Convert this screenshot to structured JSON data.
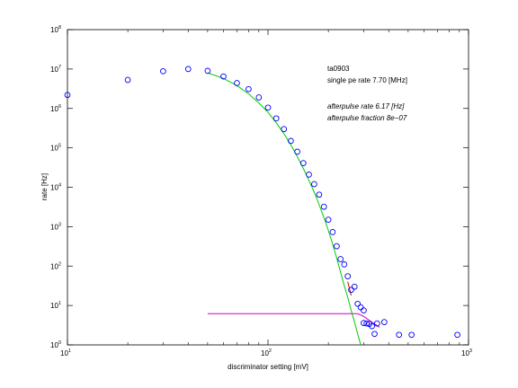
{
  "chart_data": {
    "type": "scatter",
    "title": "",
    "xlabel": "discriminator setting [mV]",
    "ylabel": "rate [Hz]",
    "xscale": "log",
    "yscale": "log",
    "xlim": [
      10,
      1000
    ],
    "ylim": [
      1,
      100000000
    ],
    "x_ticks": [
      {
        "base": "10",
        "exp": "1",
        "value": 10
      },
      {
        "base": "10",
        "exp": "2",
        "value": 100
      },
      {
        "base": "10",
        "exp": "3",
        "value": 1000
      }
    ],
    "y_ticks": [
      {
        "base": "10",
        "exp": "0",
        "value": 1
      },
      {
        "base": "10",
        "exp": "1",
        "value": 10
      },
      {
        "base": "10",
        "exp": "2",
        "value": 100
      },
      {
        "base": "10",
        "exp": "3",
        "value": 1000
      },
      {
        "base": "10",
        "exp": "4",
        "value": 10000
      },
      {
        "base": "10",
        "exp": "5",
        "value": 100000
      },
      {
        "base": "10",
        "exp": "6",
        "value": 1000000
      },
      {
        "base": "10",
        "exp": "7",
        "value": 10000000
      },
      {
        "base": "10",
        "exp": "8",
        "value": 100000000
      }
    ],
    "annotations": [
      {
        "text": "ta0903",
        "italic": false
      },
      {
        "text": "single pe rate 7.70 [MHz]",
        "italic": false
      },
      {
        "text": "afterpulse rate 6.17 [Hz]",
        "italic": true
      },
      {
        "text": "afterpulse fraction 8e−07",
        "italic": true
      }
    ],
    "series": [
      {
        "type": "scatter",
        "color": "#0000ff",
        "points": [
          [
            10,
            2200000
          ],
          [
            20,
            5300000
          ],
          [
            30,
            8800000
          ],
          [
            40,
            10000000
          ],
          [
            50,
            9000000
          ],
          [
            60,
            6500000
          ],
          [
            70,
            4400000
          ],
          [
            80,
            3100000
          ],
          [
            90,
            1900000
          ],
          [
            100,
            1050000
          ],
          [
            110,
            560000
          ],
          [
            120,
            300000
          ],
          [
            130,
            150000
          ],
          [
            140,
            80000
          ],
          [
            150,
            41000
          ],
          [
            160,
            21000
          ],
          [
            170,
            12000
          ],
          [
            180,
            6500
          ],
          [
            190,
            3200
          ],
          [
            200,
            1500
          ],
          [
            210,
            730
          ],
          [
            220,
            320
          ],
          [
            230,
            150
          ],
          [
            240,
            110
          ],
          [
            250,
            55
          ],
          [
            260,
            25
          ],
          [
            270,
            30
          ],
          [
            280,
            11
          ],
          [
            290,
            9
          ],
          [
            300,
            7.5
          ],
          [
            300,
            3.6
          ],
          [
            310,
            3.5
          ],
          [
            320,
            3.4
          ],
          [
            330,
            3.0
          ],
          [
            340,
            1.9
          ],
          [
            350,
            3.5
          ],
          [
            380,
            3.8
          ],
          [
            450,
            1.8
          ],
          [
            520,
            1.8
          ],
          [
            880,
            1.8
          ]
        ]
      },
      {
        "type": "line",
        "name": "",
        "color": "#00cc00",
        "points": [
          [
            50,
            8000000
          ],
          [
            60,
            5800000
          ],
          [
            70,
            3800000
          ],
          [
            80,
            2350000
          ],
          [
            90,
            1380000
          ],
          [
            100,
            800000
          ],
          [
            110,
            430000
          ],
          [
            120,
            230000
          ],
          [
            130,
            120000
          ],
          [
            140,
            60000
          ],
          [
            150,
            30000
          ],
          [
            160,
            15000
          ],
          [
            170,
            7500
          ],
          [
            180,
            3600
          ],
          [
            190,
            1700
          ],
          [
            200,
            800
          ],
          [
            210,
            360
          ],
          [
            220,
            160
          ],
          [
            230,
            70
          ],
          [
            240,
            32
          ],
          [
            250,
            16
          ],
          [
            260,
            7.5
          ],
          [
            270,
            3.8
          ],
          [
            280,
            1.9
          ],
          [
            290,
            1.0
          ]
        ]
      },
      {
        "type": "line",
        "name": "",
        "color": "#cc00cc",
        "points": [
          [
            50,
            6.17
          ],
          [
            280,
            6.17
          ],
          [
            300,
            5.3
          ],
          [
            320,
            4.2
          ],
          [
            340,
            3.4
          ],
          [
            360,
            2.8
          ]
        ]
      },
      {
        "type": "line",
        "name": "",
        "color": "#cc0000",
        "points": [
          [
            250,
            40
          ],
          [
            260,
            18
          ]
        ]
      }
    ]
  }
}
